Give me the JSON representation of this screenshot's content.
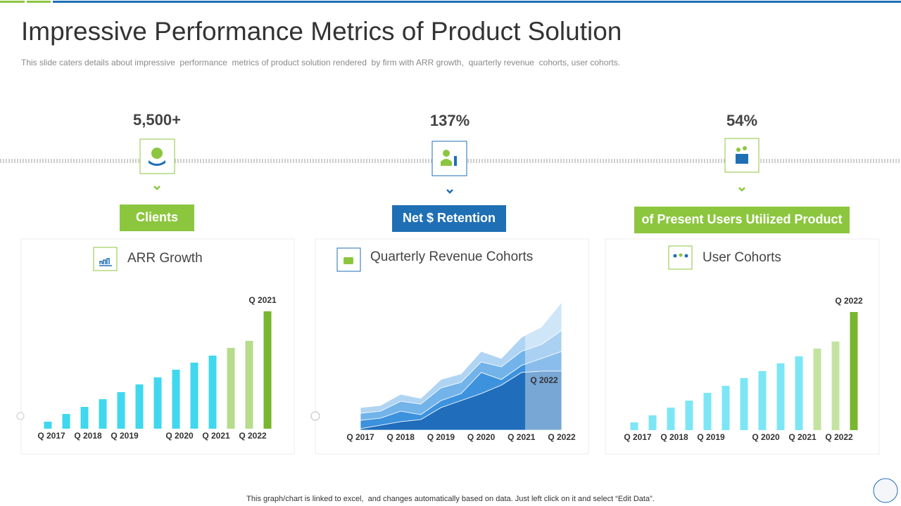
{
  "header": {
    "title": "Impressive Performance Metrics of Product Solution",
    "subtitle": "This slide caters details about impressive  performance  metrics of product solution rendered  by firm with ARR growth,  quarterly revenue  cohorts, user cohorts."
  },
  "metrics": [
    {
      "value": "5,500+",
      "label": "Clients"
    },
    {
      "value": "137%",
      "label": "Net $ Retention"
    },
    {
      "value": "54%",
      "label": "of Present Users Utilized Product"
    }
  ],
  "chart_data": [
    {
      "type": "bar",
      "title": "ARR Growth",
      "categories": [
        "Q 2017",
        null,
        "Q 2018",
        null,
        "Q 2019",
        null,
        null,
        "Q 2020",
        null,
        "Q 2021",
        null,
        "Q 2022",
        null
      ],
      "values": [
        10,
        21,
        31,
        42,
        52,
        63,
        73,
        84,
        94,
        104,
        115,
        125,
        167
      ],
      "colors": [
        "#3fd8ee",
        "#3fd8ee",
        "#3fd8ee",
        "#3fd8ee",
        "#3fd8ee",
        "#3fd8ee",
        "#3fd8ee",
        "#3fd8ee",
        "#3fd8ee",
        "#3fd8ee",
        "#b7dc8c",
        "#b7dc8c",
        "#78b62f"
      ],
      "ylim": [
        0,
        180
      ],
      "annotation": "Q 2021"
    },
    {
      "type": "area",
      "title": "Quarterly Revenue Cohorts",
      "categories": [
        "Q 2017",
        null,
        "Q 2018",
        null,
        "Q 2019",
        null,
        "Q 2020",
        null,
        "Q 2021",
        null,
        "Q 2022"
      ],
      "series": [
        {
          "color": "#1f6dbb",
          "values": [
            2,
            7,
            12,
            15,
            32,
            42,
            52,
            64,
            82,
            84,
            84
          ]
        },
        {
          "color": "#3d92de",
          "values": [
            12,
            10,
            15,
            7,
            10,
            10,
            30,
            8,
            10,
            18,
            28
          ]
        },
        {
          "color": "#72b3ea",
          "values": [
            10,
            10,
            14,
            15,
            18,
            16,
            15,
            18,
            20,
            20,
            30
          ]
        },
        {
          "color": "#b0d4f3",
          "values": [
            8,
            8,
            10,
            8,
            12,
            12,
            15,
            12,
            20,
            25,
            40
          ]
        }
      ],
      "ylim": [
        0,
        200
      ],
      "annotation": "Q 2022"
    },
    {
      "type": "bar",
      "title": "User Cohorts",
      "categories": [
        "Q 2017",
        null,
        "Q 2018",
        null,
        "Q 2019",
        null,
        null,
        "Q 2020",
        null,
        "Q 2021",
        null,
        "Q 2022",
        null
      ],
      "values": [
        11,
        21,
        32,
        42,
        53,
        63,
        74,
        84,
        95,
        105,
        116,
        126,
        168
      ],
      "colors": [
        "#7de6f5",
        "#7de6f5",
        "#7de6f5",
        "#7de6f5",
        "#7de6f5",
        "#7de6f5",
        "#7de6f5",
        "#7de6f5",
        "#7de6f5",
        "#7de6f5",
        "#c4e3a0",
        "#c4e3a0",
        "#78b62f"
      ],
      "ylim": [
        0,
        180
      ],
      "annotation": "Q 2022"
    }
  ],
  "footer": "This graph/chart is linked to excel,  and changes automatically based on data. Just left click on it and select “Edit Data”."
}
